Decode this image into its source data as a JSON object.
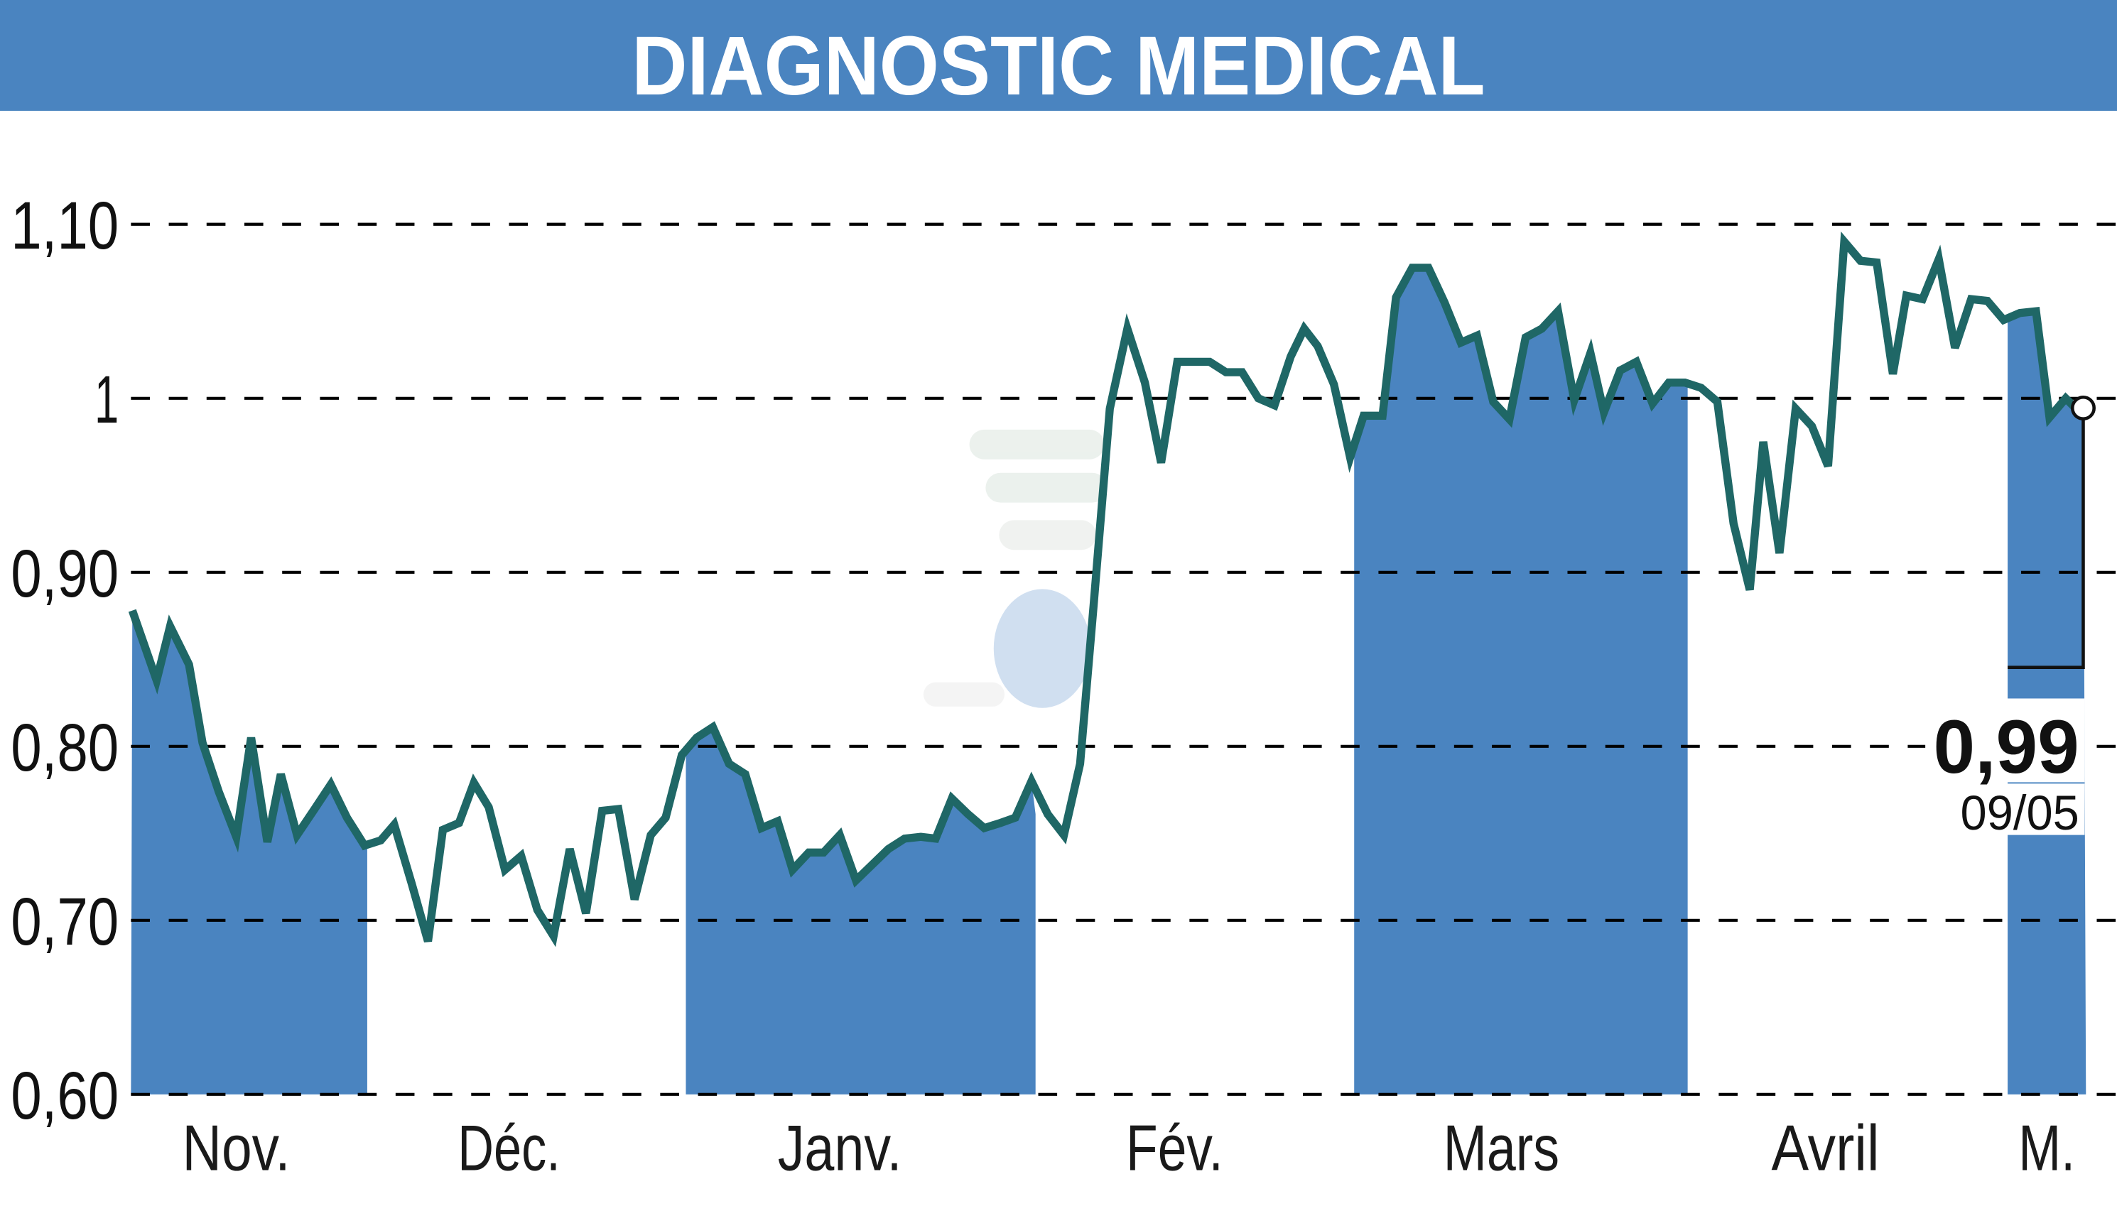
{
  "header": {
    "title": "DIAGNOSTIC MEDICAL",
    "bg_color": "#4a84c0",
    "text_color": "#ffffff"
  },
  "colors": {
    "line": "#1f6766",
    "fill": "#4a84c0",
    "grid": "#000000",
    "background": "#ffffff"
  },
  "last_value": {
    "value": "0,99",
    "date": "09/05"
  },
  "chart_data": {
    "type": "line",
    "title": "DIAGNOSTIC MEDICAL",
    "xlabel": "",
    "ylabel": "",
    "ylim": [
      0.6,
      1.1
    ],
    "y_ticks": [
      "1,10",
      "1",
      "0,90",
      "0,80",
      "0,70",
      "0,60"
    ],
    "y_tick_values": [
      1.1,
      1.0,
      0.9,
      0.8,
      0.7,
      0.6
    ],
    "x_month_labels": [
      "Nov.",
      "Déc.",
      "Janv.",
      "Fév.",
      "Mars",
      "Avril",
      "M."
    ],
    "grid": "horizontal dashed",
    "shaded_months": [
      "Nov.",
      "Janv.",
      "Mars",
      "M."
    ],
    "last_point": {
      "value": 0.99,
      "label": "0,99",
      "date": "09/05"
    },
    "series": [
      {
        "name": "DIAGNOSTIC MEDICAL",
        "x": [
          98,
          116,
          126,
          140,
          150,
          162,
          175,
          186,
          198,
          208,
          220,
          233,
          245,
          257,
          270,
          282,
          292,
          305,
          317,
          328,
          340,
          351,
          362,
          374,
          386,
          398,
          410,
          422,
          434,
          446,
          458,
          470,
          482,
          493,
          505,
          516,
          528,
          540,
          552,
          564,
          576,
          587,
          599,
          610,
          622,
          634,
          646,
          658,
          670,
          682,
          693,
          705,
          717,
          729,
          741,
          752,
          764,
          776,
          788,
          800,
          810,
          822,
          835,
          848,
          860,
          872,
          884,
          896,
          908,
          920,
          932,
          944,
          956,
          966,
          976,
          988,
          1000,
          1010,
          1024,
          1034,
          1046,
          1058,
          1070,
          1082,
          1094,
          1106,
          1118,
          1130,
          1142,
          1154,
          1166,
          1178,
          1188,
          1200,
          1212,
          1224,
          1236,
          1248,
          1260,
          1272,
          1284,
          1296,
          1306,
          1318,
          1330,
          1342,
          1354,
          1366,
          1378,
          1390,
          1402,
          1412,
          1424,
          1436,
          1448,
          1460,
          1472,
          1484,
          1496,
          1508,
          1518,
          1530,
          1543
        ],
        "values": [
          0.878,
          0.838,
          0.869,
          0.847,
          0.802,
          0.774,
          0.748,
          0.805,
          0.745,
          0.784,
          0.749,
          0.764,
          0.778,
          0.759,
          0.743,
          0.746,
          0.755,
          0.721,
          0.688,
          0.752,
          0.756,
          0.779,
          0.765,
          0.729,
          0.737,
          0.706,
          0.691,
          0.741,
          0.704,
          0.763,
          0.764,
          0.712,
          0.749,
          0.759,
          0.795,
          0.805,
          0.811,
          0.79,
          0.784,
          0.753,
          0.757,
          0.729,
          0.739,
          0.739,
          0.749,
          0.723,
          0.732,
          0.741,
          0.747,
          0.748,
          0.747,
          0.77,
          0.761,
          0.753,
          0.756,
          0.759,
          0.78,
          0.761,
          0.749,
          0.79,
          0.881,
          0.994,
          1.04,
          1.009,
          0.963,
          1.021,
          1.021,
          1.021,
          1.015,
          1.015,
          1.0,
          0.996,
          1.024,
          1.04,
          1.03,
          1.008,
          0.966,
          0.99,
          0.99,
          1.058,
          1.075,
          1.075,
          1.055,
          1.032,
          1.036,
          0.998,
          0.988,
          1.035,
          1.04,
          1.05,
          0.999,
          1.026,
          0.992,
          1.016,
          1.021,
          0.997,
          1.009,
          1.009,
          1.006,
          0.998,
          0.928,
          0.89,
          0.975,
          0.911,
          0.994,
          0.984,
          0.961,
          1.09,
          1.079,
          1.078,
          1.014,
          1.059,
          1.057,
          1.08,
          1.029,
          1.057,
          1.056,
          1.045,
          1.049,
          1.05,
          0.989,
          1.0,
          0.99
        ]
      }
    ]
  }
}
